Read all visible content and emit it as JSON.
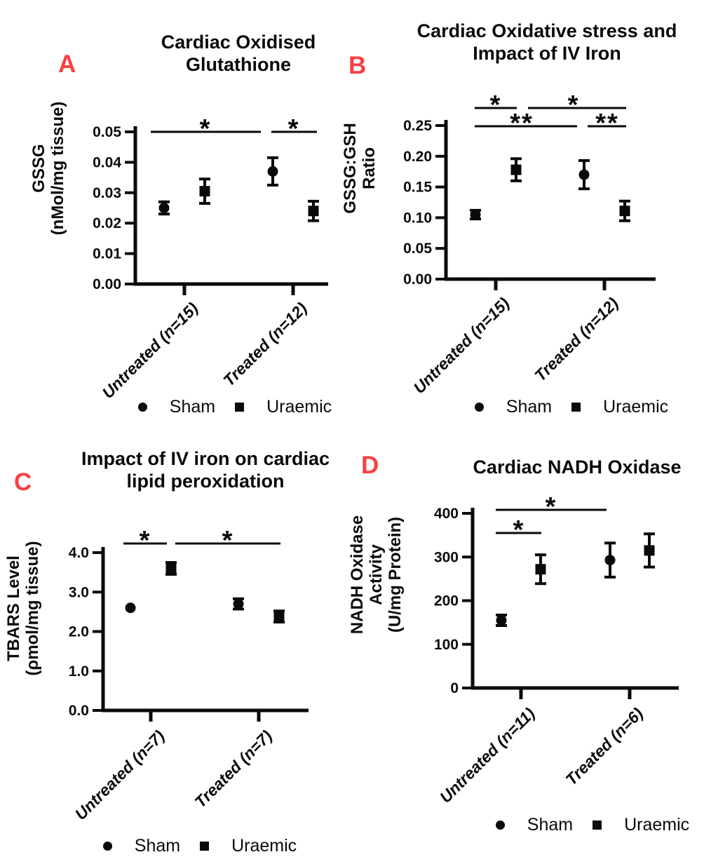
{
  "figure": {
    "background": "#ffffff",
    "ink_color": "#0a0a0a",
    "panel_label_color": "#F94040"
  },
  "chart_data": [
    {
      "panel": "A",
      "type": "scatter",
      "title_lines": [
        "Cardiac Oxidised",
        "Glutathione"
      ],
      "ylabel_lines": [
        "GSSG",
        "(nMol/mg tissue)"
      ],
      "categories": [
        "Untreated (n=15)",
        "Treated (n=12)"
      ],
      "ylim": [
        0,
        0.05
      ],
      "ytick_labels": [
        "0.00",
        "0.01",
        "0.02",
        "0.03",
        "0.04",
        "0.05"
      ],
      "series": [
        {
          "name": "Sham",
          "marker": "circle",
          "values": [
            0.025,
            0.037
          ],
          "errors": [
            0.002,
            0.0045
          ]
        },
        {
          "name": "Uraemic",
          "marker": "square",
          "values": [
            0.0305,
            0.024
          ],
          "errors": [
            0.004,
            0.0032
          ]
        }
      ],
      "significance": [
        {
          "label": "*",
          "from": {
            "category": 0,
            "series": 0
          },
          "to": {
            "category": 1,
            "series": 0
          }
        },
        {
          "label": "*",
          "from": {
            "category": 1,
            "series": 0
          },
          "to": {
            "category": 1,
            "series": 1
          }
        }
      ],
      "legend": [
        "Sham",
        "Uraemic"
      ]
    },
    {
      "panel": "B",
      "type": "scatter",
      "title_lines": [
        "Cardiac Oxidative stress and",
        "Impact of IV Iron"
      ],
      "ylabel_lines": [
        "GSSG:GSH",
        "Ratio"
      ],
      "categories": [
        "Untreated (n=15)",
        "Treated (n=12)"
      ],
      "ylim": [
        0,
        0.25
      ],
      "ytick_labels": [
        "0.00",
        "0.05",
        "0.10",
        "0.15",
        "0.20",
        "0.25"
      ],
      "series": [
        {
          "name": "Sham",
          "marker": "circle",
          "values": [
            0.105,
            0.17
          ],
          "errors": [
            0.007,
            0.023
          ]
        },
        {
          "name": "Uraemic",
          "marker": "square",
          "values": [
            0.178,
            0.111
          ],
          "errors": [
            0.018,
            0.016
          ]
        }
      ],
      "significance": [
        {
          "label": "*",
          "from": {
            "category": 0,
            "series": 0
          },
          "to": {
            "category": 0,
            "series": 1
          }
        },
        {
          "label": "*",
          "from": {
            "category": 0,
            "series": 1
          },
          "to": {
            "category": 1,
            "series": 1
          }
        },
        {
          "label": "**",
          "from": {
            "category": 0,
            "series": 0
          },
          "to": {
            "category": 1,
            "series": 0
          }
        },
        {
          "label": "**",
          "from": {
            "category": 1,
            "series": 0
          },
          "to": {
            "category": 1,
            "series": 1
          }
        }
      ],
      "legend": [
        "Sham",
        "Uraemic"
      ]
    },
    {
      "panel": "C",
      "type": "scatter",
      "title_lines": [
        "Impact of IV iron on cardiac",
        "lipid peroxidation"
      ],
      "ylabel_lines": [
        "TBARS Level",
        "(ρmol/mg tissue)"
      ],
      "categories": [
        "Untreated (n=7)",
        "Treated (n=7)"
      ],
      "ylim": [
        0,
        4.0
      ],
      "ytick_labels": [
        "0.0",
        "1.0",
        "2.0",
        "3.0",
        "4.0"
      ],
      "series": [
        {
          "name": "Sham",
          "marker": "circle",
          "values": [
            2.6,
            2.7
          ],
          "errors": [
            0,
            0.13
          ]
        },
        {
          "name": "Uraemic",
          "marker": "square",
          "values": [
            3.6,
            2.38
          ],
          "errors": [
            0.15,
            0.14
          ]
        }
      ],
      "significance": [
        {
          "label": "*",
          "from": {
            "category": 0,
            "series": 0
          },
          "to": {
            "category": 0,
            "series": 1
          }
        },
        {
          "label": "*",
          "from": {
            "category": 0,
            "series": 1
          },
          "to": {
            "category": 1,
            "series": 1
          }
        }
      ],
      "legend": [
        "Sham",
        "Uraemic"
      ]
    },
    {
      "panel": "D",
      "type": "scatter",
      "title_lines": [
        "Cardiac NADH Oxidase"
      ],
      "ylabel_lines": [
        "NADH Oxidase",
        "Activity",
        "(U/mg Protein)"
      ],
      "categories": [
        "Untreated (n=11)",
        "Treated (n=6)"
      ],
      "ylim": [
        0,
        400
      ],
      "ytick_labels": [
        "0",
        "100",
        "200",
        "300",
        "400"
      ],
      "series": [
        {
          "name": "Sham",
          "marker": "circle",
          "values": [
            155,
            293
          ],
          "errors": [
            12,
            39
          ]
        },
        {
          "name": "Uraemic",
          "marker": "square",
          "values": [
            272,
            315
          ],
          "errors": [
            33,
            38
          ]
        }
      ],
      "significance": [
        {
          "label": "*",
          "from": {
            "category": 0,
            "series": 0
          },
          "to": {
            "category": 1,
            "series": 0
          }
        },
        {
          "label": "*",
          "from": {
            "category": 0,
            "series": 0
          },
          "to": {
            "category": 0,
            "series": 1
          }
        }
      ],
      "legend": [
        "Sham",
        "Uraemic"
      ]
    }
  ]
}
